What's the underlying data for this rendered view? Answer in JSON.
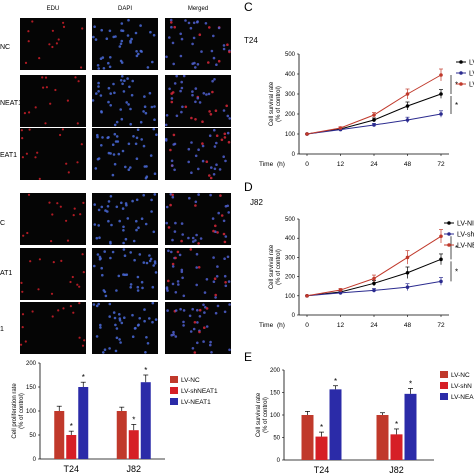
{
  "micrographs": {
    "columns": [
      "EDU",
      "DAPI",
      "Merged"
    ],
    "rows_top": [
      "NC",
      "NEAT1",
      "EAT1"
    ],
    "rows_bottom": [
      "C",
      "AT1",
      "1"
    ]
  },
  "panels": {
    "C": {
      "letter": "C",
      "cell_line": "T24"
    },
    "D": {
      "letter": "D",
      "cell_line": "J82"
    },
    "E": {
      "letter": "E"
    }
  },
  "legends": {
    "C": [
      "LV",
      "LV",
      "LV"
    ],
    "D": [
      "LV-NI",
      "LV-sh",
      "LV-NE"
    ],
    "E": [
      "LV-NC",
      "LV-shN",
      "LV-NEA"
    ],
    "bottom_left": [
      "LV-NC",
      "LV-shNEAT1",
      "LV-NEAT1"
    ]
  },
  "colors": {
    "nc": "#000000",
    "sh": "#2b2b8f",
    "neat": "#c0392b",
    "bar_nc": "#c0392b",
    "bar_sh": "#d61f26",
    "bar_neat": "#2b2ba8"
  },
  "chart_data": [
    {
      "id": "C",
      "type": "line",
      "xlabel": "Time (h)",
      "time_label": "Time",
      "time_unit": "(h)",
      "ylabel": "Cell survival rate\n(% of control)",
      "ylim": [
        0,
        500
      ],
      "yticks": [
        0,
        100,
        200,
        300,
        400,
        500
      ],
      "categories": [
        "0",
        "12",
        "24",
        "48",
        "72"
      ],
      "series": [
        {
          "key": "nc",
          "values": [
            100,
            125,
            170,
            240,
            300
          ],
          "err": [
            0,
            5,
            10,
            20,
            22
          ]
        },
        {
          "key": "sh",
          "values": [
            100,
            122,
            145,
            170,
            200
          ],
          "err": [
            0,
            4,
            8,
            14,
            16
          ]
        },
        {
          "key": "neat",
          "values": [
            100,
            130,
            195,
            300,
            395
          ],
          "err": [
            0,
            6,
            12,
            25,
            30
          ]
        }
      ],
      "significance": [
        "*",
        "*"
      ]
    },
    {
      "id": "D",
      "type": "line",
      "xlabel": "Time (h)",
      "time_label": "Time",
      "time_unit": "(h)",
      "ylabel": "Cell survival rate\n(% of control)",
      "ylim": [
        0,
        500
      ],
      "yticks": [
        0,
        100,
        200,
        300,
        400,
        500
      ],
      "categories": [
        "0",
        "12",
        "24",
        "48",
        "72"
      ],
      "series": [
        {
          "key": "nc",
          "values": [
            100,
            120,
            165,
            220,
            290
          ],
          "err": [
            0,
            6,
            14,
            30,
            28
          ]
        },
        {
          "key": "sh",
          "values": [
            100,
            115,
            128,
            145,
            175
          ],
          "err": [
            0,
            5,
            10,
            18,
            20
          ]
        },
        {
          "key": "neat",
          "values": [
            100,
            130,
            190,
            300,
            410
          ],
          "err": [
            0,
            8,
            18,
            35,
            35
          ]
        }
      ],
      "significance": [
        "*",
        "*"
      ]
    },
    {
      "id": "B",
      "type": "bar",
      "ylabel": "Cell proliferation rate\n(% of control)",
      "ylim": [
        0,
        200
      ],
      "yticks": [
        0,
        50,
        100,
        150,
        200
      ],
      "categories": [
        "T24",
        "J82"
      ],
      "series": [
        {
          "key": "bar_nc",
          "values": [
            100,
            100
          ],
          "err": [
            10,
            8
          ]
        },
        {
          "key": "bar_sh",
          "values": [
            50,
            60
          ],
          "err": [
            8,
            12
          ]
        },
        {
          "key": "bar_neat",
          "values": [
            150,
            160
          ],
          "err": [
            10,
            15
          ]
        }
      ],
      "star": "*"
    },
    {
      "id": "E",
      "type": "bar",
      "ylabel": "Cell survival rate\n(% of control)",
      "ylim": [
        0,
        200
      ],
      "yticks": [
        0,
        50,
        100,
        150,
        200
      ],
      "categories": [
        "T24",
        "J82"
      ],
      "series": [
        {
          "key": "bar_nc",
          "values": [
            100,
            100
          ],
          "err": [
            8,
            5
          ]
        },
        {
          "key": "bar_sh",
          "values": [
            52,
            57
          ],
          "err": [
            10,
            12
          ]
        },
        {
          "key": "bar_neat",
          "values": [
            157,
            147
          ],
          "err": [
            8,
            12
          ]
        }
      ],
      "star": "*"
    }
  ]
}
